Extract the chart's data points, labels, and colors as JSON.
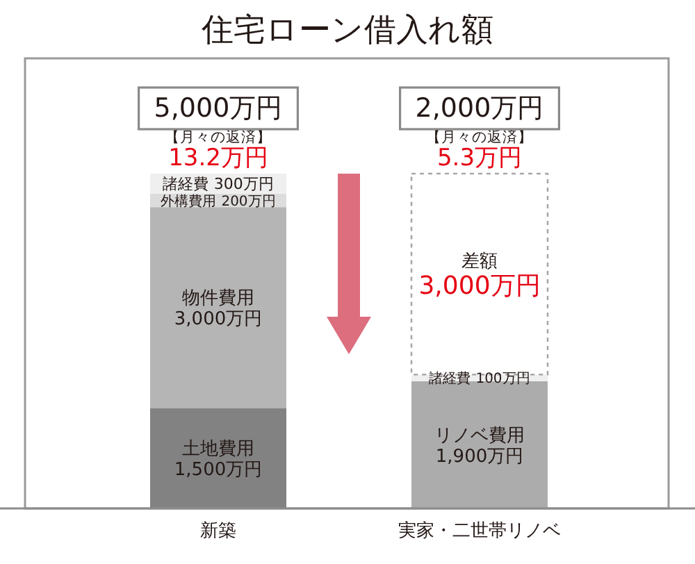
{
  "chart_data": {
    "type": "bar",
    "title": "住宅ローン借入れ額",
    "categories": [
      "新築",
      "実家・二世帯リノベ"
    ],
    "stacked": true,
    "series": [
      {
        "name": "土地費用",
        "color": "#828282",
        "values": [
          1500,
          null
        ],
        "value_labels": [
          "1,500万円",
          null
        ]
      },
      {
        "name": "リノベ費用",
        "color": "#acacac",
        "values": [
          null,
          1900
        ],
        "value_labels": [
          null,
          "1,900万円"
        ]
      },
      {
        "name": "物件費用",
        "color": "#b5b5b5",
        "values": [
          3000,
          null
        ],
        "value_labels": [
          "3,000万円",
          null
        ]
      },
      {
        "name": "外構費用",
        "color": "#dcdcdc",
        "values": [
          200,
          null
        ],
        "value_labels": [
          "200万円",
          null
        ]
      },
      {
        "name": "諸経費",
        "color": "#efefef",
        "values": [
          300,
          100
        ],
        "value_labels": [
          "300万円",
          "100万円"
        ]
      },
      {
        "name": "差額",
        "color": "#ffffff",
        "line_style": "dashed",
        "values": [
          null,
          3000
        ],
        "value_labels": [
          null,
          "3,000万円"
        ]
      }
    ],
    "annotations": [
      {
        "text": "5,000万円",
        "x": "新築",
        "y": 5000
      },
      {
        "text": "【月々の返済】",
        "x": "新築",
        "y": 5000
      },
      {
        "text": "13.2万円",
        "x": "新築",
        "y": 5000
      },
      {
        "text": "2,000万円",
        "x": "実家・二世帯リノベ",
        "y": 5000
      },
      {
        "text": "【月々の返済】",
        "x": "実家・二世帯リノベ",
        "y": 5000
      },
      {
        "text": "5.3万円",
        "x": "実家・二世帯リノベ",
        "y": 5000
      }
    ]
  }
}
